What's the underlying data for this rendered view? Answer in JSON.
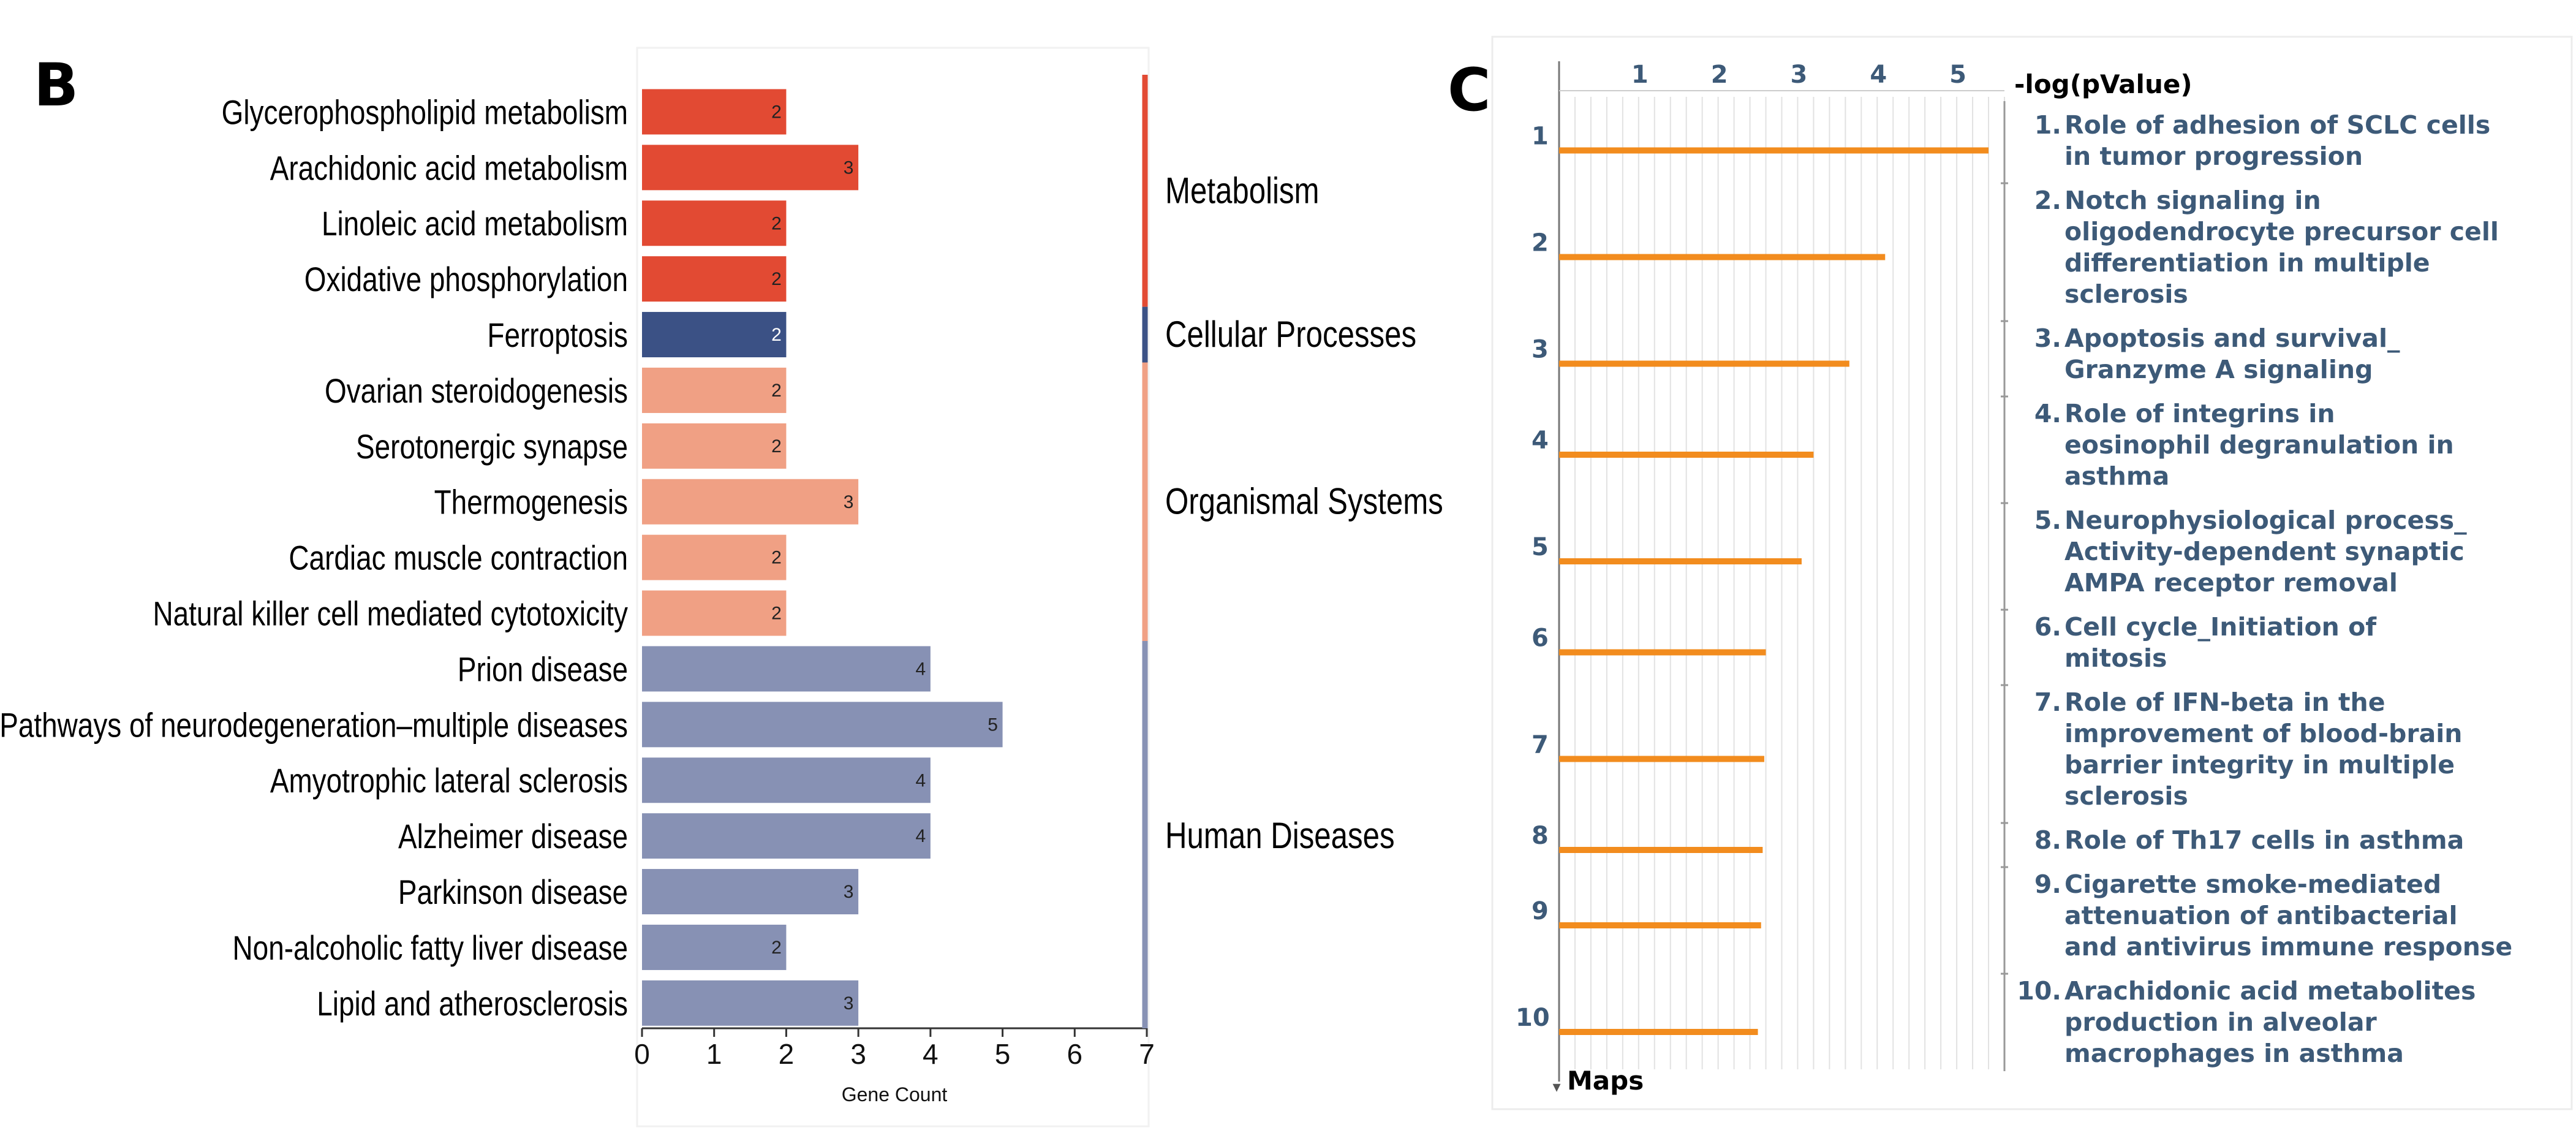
{
  "panel_b": {
    "label": "B"
  },
  "panel_c": {
    "label": "C"
  },
  "chart_data": [
    {
      "type": "bar",
      "orientation": "horizontal",
      "title": "",
      "xlabel": "Gene Count",
      "xlim": [
        0,
        7
      ],
      "xticks": [
        "0",
        "1",
        "2",
        "3",
        "4",
        "5",
        "6",
        "7"
      ],
      "categories": [
        "Glycerophospholipid metabolism",
        "Arachidonic acid metabolism",
        "Linoleic acid metabolism",
        "Oxidative phosphorylation",
        "Ferroptosis",
        "Ovarian steroidogenesis",
        "Serotonergic synapse",
        "Thermogenesis",
        "Cardiac muscle contraction",
        "Natural killer cell mediated cytotoxicity",
        "Prion disease",
        "Pathways of neurodegeneration–multiple diseases",
        "Amyotrophic lateral sclerosis",
        "Alzheimer disease",
        "Parkinson disease",
        "Non-alcoholic fatty liver disease",
        "Lipid and atherosclerosis"
      ],
      "values": [
        2,
        3,
        2,
        2,
        2,
        2,
        2,
        3,
        2,
        2,
        4,
        5,
        4,
        4,
        3,
        2,
        3
      ],
      "value_labels": [
        "2",
        "3",
        "2",
        "2",
        "2",
        "2",
        "2",
        "3",
        "2",
        "2",
        "4",
        "5",
        "4",
        "4",
        "3",
        "2",
        "3"
      ],
      "bar_group": [
        "Metabolism",
        "Metabolism",
        "Metabolism",
        "Metabolism",
        "Cellular Processes",
        "Organismal Systems",
        "Organismal Systems",
        "Organismal Systems",
        "Organismal Systems",
        "Organismal Systems",
        "Human Diseases",
        "Human Diseases",
        "Human Diseases",
        "Human Diseases",
        "Human Diseases",
        "Human Diseases",
        "Human Diseases"
      ],
      "groups": [
        {
          "name": "Metabolism",
          "color": "#e24a33",
          "first": 0,
          "last": 3
        },
        {
          "name": "Cellular Processes",
          "color": "#3b5185",
          "first": 4,
          "last": 4
        },
        {
          "name": "Organismal Systems",
          "color": "#f0a084",
          "first": 5,
          "last": 9
        },
        {
          "name": "Human Diseases",
          "color": "#8791b4",
          "first": 10,
          "last": 16
        }
      ]
    },
    {
      "type": "bar",
      "orientation": "horizontal",
      "style": "lollipop-lines",
      "xlabel": "-log(pValue)",
      "ylabel": "Maps",
      "xlim": [
        0,
        5.6
      ],
      "xticks": [
        "1",
        "2",
        "3",
        "4",
        "5"
      ],
      "categories": [
        "1",
        "2",
        "3",
        "4",
        "5",
        "6",
        "7",
        "8",
        "9",
        "10"
      ],
      "values": [
        5.4,
        4.1,
        3.65,
        3.2,
        3.05,
        2.6,
        2.58,
        2.56,
        2.54,
        2.5
      ],
      "line_color": "#f28c1e",
      "list": [
        {
          "num": "1.",
          "lines": [
            "Role of adhesion of SCLC cells",
            "in tumor progression"
          ]
        },
        {
          "num": "2.",
          "lines": [
            "Notch signaling in",
            "oligodendrocyte precursor cell",
            "differentiation in multiple",
            "sclerosis"
          ]
        },
        {
          "num": "3.",
          "lines": [
            "Apoptosis and survival_",
            "Granzyme A signaling"
          ]
        },
        {
          "num": "4.",
          "lines": [
            "Role of integrins in",
            "eosinophil degranulation in",
            "asthma"
          ]
        },
        {
          "num": "5.",
          "lines": [
            "Neurophysiological process_",
            "Activity-dependent synaptic",
            "AMPA receptor removal"
          ]
        },
        {
          "num": "6.",
          "lines": [
            "Cell cycle_Initiation of",
            "mitosis"
          ]
        },
        {
          "num": "7.",
          "lines": [
            "Role of IFN-beta in the",
            "improvement of blood-brain",
            "barrier integrity in multiple",
            "sclerosis"
          ]
        },
        {
          "num": "8.",
          "lines": [
            "Role of Th17 cells in asthma"
          ]
        },
        {
          "num": "9.",
          "lines": [
            "Cigarette smoke-mediated",
            "attenuation of antibacterial",
            "and antivirus immune response"
          ]
        },
        {
          "num": "10.",
          "lines": [
            "Arachidonic acid metabolites",
            "production in alveolar",
            "macrophages in asthma"
          ]
        }
      ]
    }
  ]
}
